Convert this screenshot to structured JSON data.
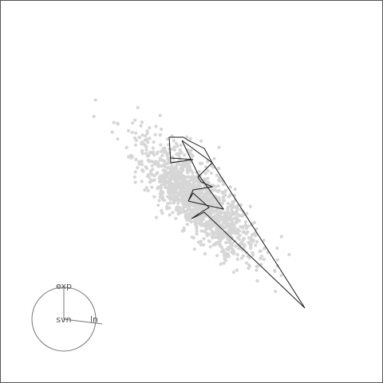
{
  "chart_data": {
    "type": "scatter",
    "title": "",
    "background_points": {
      "count": 1400,
      "color": "#d6d6d6",
      "center": [
        0.0,
        0.0
      ],
      "sd_major": 0.34,
      "sd_minor": 0.115,
      "angle_deg": 45
    },
    "path": {
      "color": "#1a1a1a",
      "points": [
        [
          -0.2429,
          -0.3714
        ],
        [
          -0.0429,
          -0.3571
        ],
        [
          -0.2429,
          -0.3286
        ],
        [
          -0.2571,
          -0.5571
        ],
        [
          -0.1286,
          -0.5571
        ],
        [
          -0.0857,
          -0.5286
        ],
        [
          0.0571,
          -0.4571
        ],
        [
          0.1286,
          -0.3286
        ],
        [
          0.0,
          -0.2
        ],
        [
          0.0286,
          -0.1571
        ],
        [
          0.1286,
          -0.1143
        ],
        [
          -0.0429,
          -0.0857
        ],
        [
          -0.0857,
          0.0143
        ],
        [
          -0.0429,
          -0.0571
        ],
        [
          0.1,
          0.0714
        ],
        [
          0.0286,
          0.1143
        ],
        [
          -0.0571,
          0.1714
        ],
        [
          0.0571,
          0.1143
        ],
        [
          0.9571,
          0.9714
        ],
        [
          0.1286,
          -0.3286
        ],
        [
          -0.1429,
          -0.5286
        ],
        [
          0.0,
          -0.2286
        ],
        [
          0.2286,
          0.0857
        ],
        [
          -0.0857,
          0.0143
        ]
      ]
    },
    "axes_legend": {
      "placement": "bottom-left",
      "labels": [
        "exp",
        "svn",
        "ln"
      ],
      "outline_color": "#777777"
    }
  }
}
